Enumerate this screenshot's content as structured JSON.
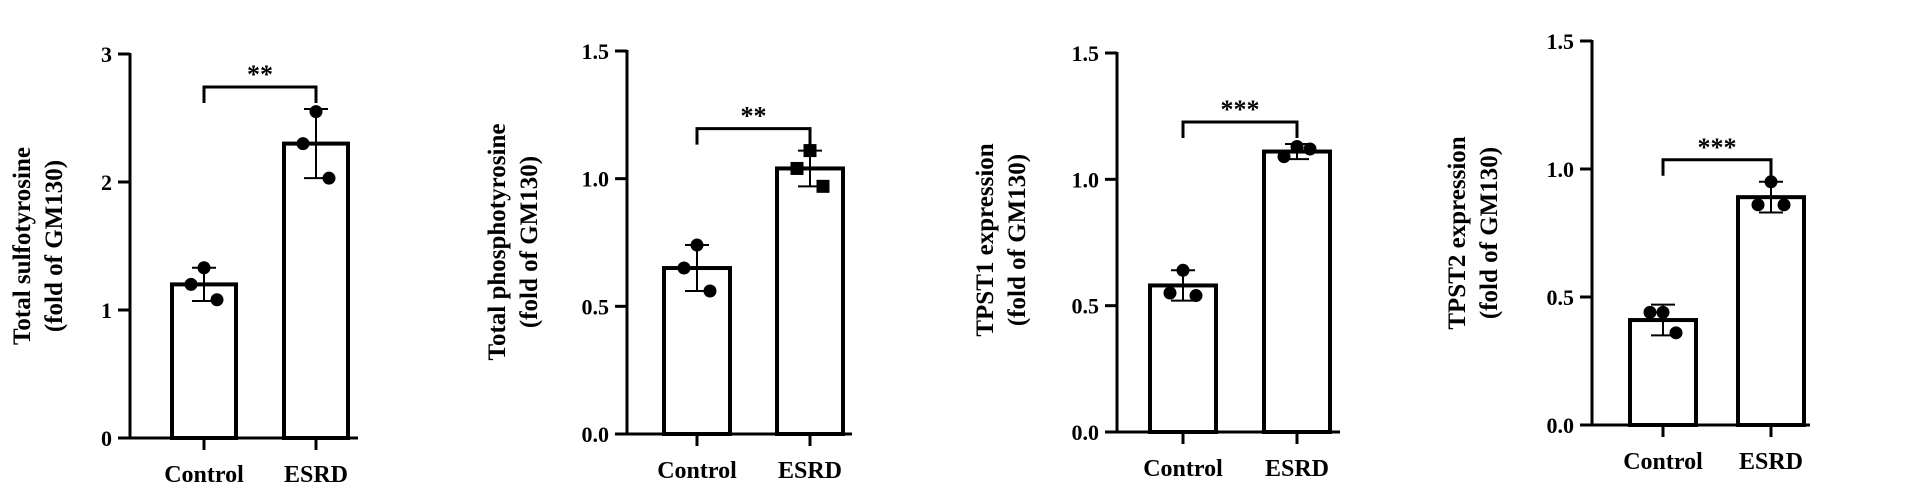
{
  "chart_data": [
    {
      "type": "bar",
      "categories": [
        "Control",
        "ESRD"
      ],
      "values": [
        1.2,
        2.3
      ],
      "errors": [
        0.13,
        0.27
      ],
      "points": [
        [
          1.33,
          1.2,
          1.08
        ],
        [
          2.55,
          2.3,
          2.03
        ]
      ],
      "ylabel_lines": [
        "Total  sulfotyrosine",
        "(fold of  GM130)"
      ],
      "yticks": [
        0,
        1,
        2,
        3
      ],
      "ytick_labels": [
        "0",
        "1",
        "2",
        "3"
      ],
      "ylim": [
        0,
        3
      ],
      "significance": "**"
    },
    {
      "type": "bar",
      "categories": [
        "Control",
        "ESRD"
      ],
      "values": [
        0.65,
        1.04
      ],
      "errors": [
        0.09,
        0.07
      ],
      "points": [
        [
          0.74,
          0.65,
          0.56
        ],
        [
          1.11,
          1.04,
          0.97
        ]
      ],
      "ylabel_lines": [
        "Total  phosphotyrosine",
        "(fold of  GM130)"
      ],
      "yticks": [
        0,
        0.5,
        1,
        1.5
      ],
      "ytick_labels": [
        "0.0",
        "0.5",
        "1.0",
        "1.5"
      ],
      "ylim": [
        0,
        1.5
      ],
      "significance": "**"
    },
    {
      "type": "bar",
      "categories": [
        "Control",
        "ESRD"
      ],
      "values": [
        0.58,
        1.11
      ],
      "errors": [
        0.06,
        0.03
      ],
      "points": [
        [
          0.64,
          0.55,
          0.54
        ],
        [
          1.13,
          1.09,
          1.12
        ]
      ],
      "ylabel_lines": [
        "TPST1 expression",
        "(fold of  GM130)"
      ],
      "yticks": [
        0,
        0.5,
        1,
        1.5
      ],
      "ytick_labels": [
        "0.0",
        "0.5",
        "1.0",
        "1.5"
      ],
      "ylim": [
        0,
        1.5
      ],
      "significance": "***"
    },
    {
      "type": "bar",
      "categories": [
        "Control",
        "ESRD"
      ],
      "values": [
        0.41,
        0.89
      ],
      "errors": [
        0.06,
        0.06
      ],
      "points": [
        [
          0.44,
          0.44,
          0.36
        ],
        [
          0.95,
          0.86,
          0.86
        ]
      ],
      "ylabel_lines": [
        "TPST2 expression",
        "(fold of  GM130)"
      ],
      "yticks": [
        0,
        0.5,
        1,
        1.5
      ],
      "ytick_labels": [
        "0.0",
        "0.5",
        "1.0",
        "1.5"
      ],
      "ylim": [
        0,
        1.5
      ],
      "significance": "***"
    }
  ]
}
